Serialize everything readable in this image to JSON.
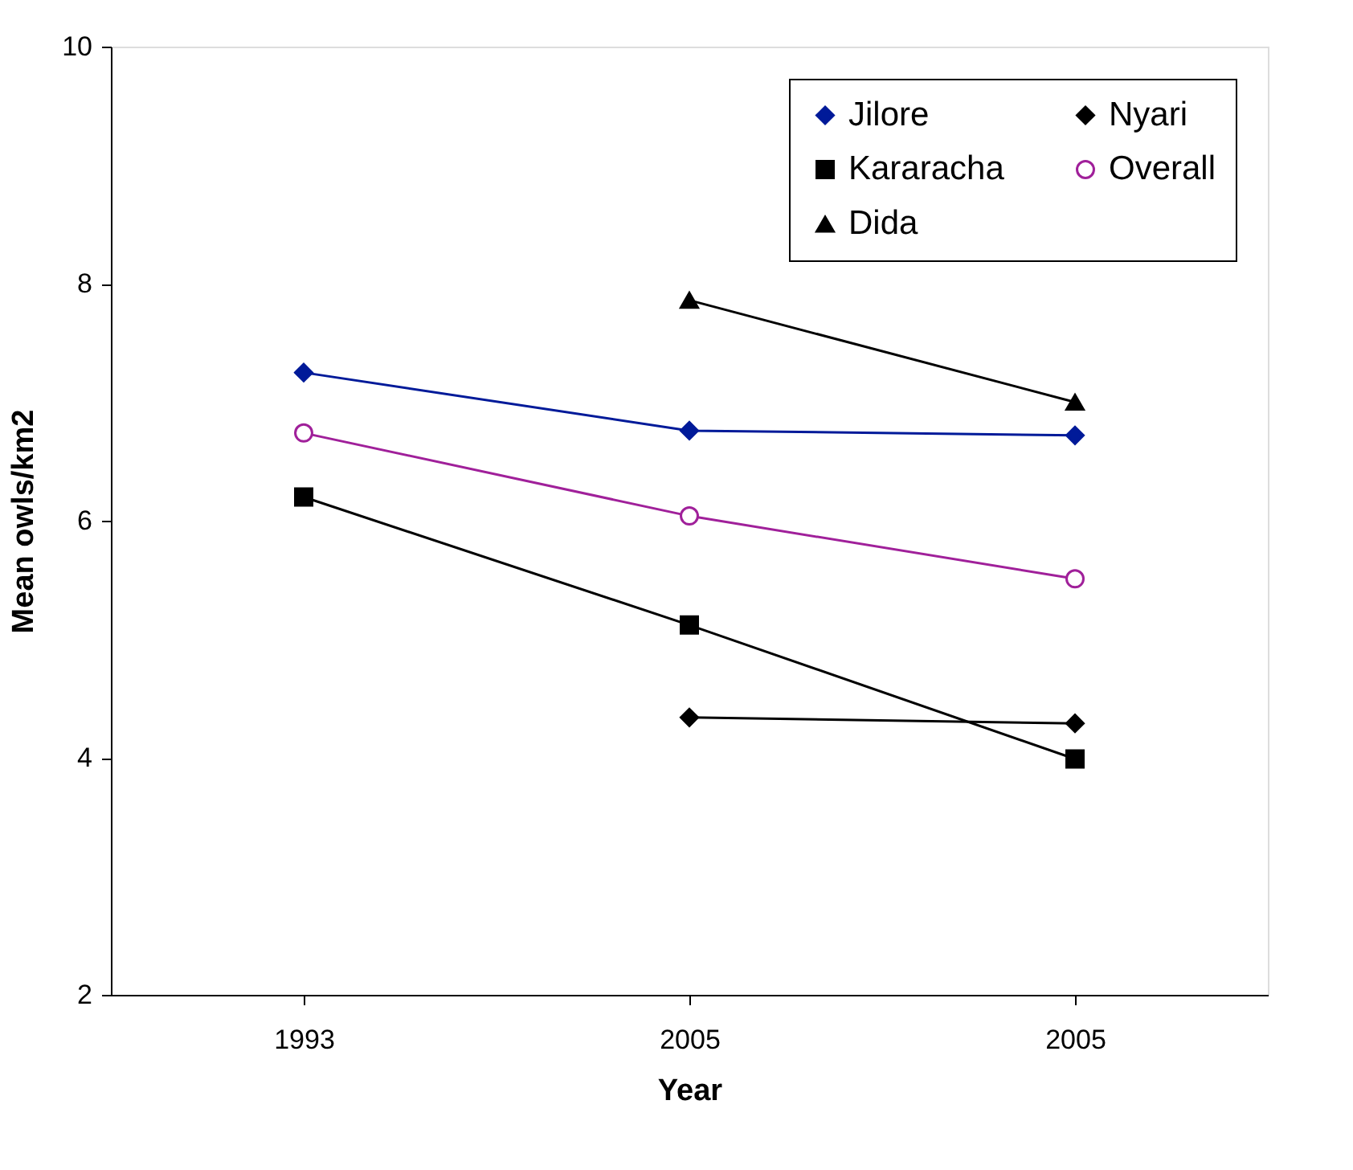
{
  "chart_data": {
    "type": "line",
    "xlabel": "Year",
    "ylabel": "Mean owls/km2",
    "categories": [
      "1993",
      "2005",
      "2005"
    ],
    "ylim": [
      2,
      10
    ],
    "yticks": [
      2,
      4,
      6,
      8,
      10
    ],
    "grid": false,
    "legend": "top right",
    "line_style": "solid",
    "series": [
      {
        "name": "Jilore",
        "color": "#001a99",
        "marker": "diamond",
        "values": [
          7.25,
          6.76,
          6.72
        ]
      },
      {
        "name": "Kararacha",
        "color": "#000000",
        "marker": "square",
        "values": [
          6.2,
          5.12,
          3.99
        ]
      },
      {
        "name": "Dida",
        "color": "#000000",
        "marker": "triangle",
        "values": [
          null,
          7.86,
          7.0
        ]
      },
      {
        "name": "Nyari",
        "color": "#000000",
        "marker": "diamond",
        "values": [
          null,
          4.34,
          4.29
        ]
      },
      {
        "name": "Overall",
        "color": "#a0209a",
        "marker": "circle",
        "values": [
          6.74,
          6.04,
          5.51
        ]
      }
    ]
  }
}
